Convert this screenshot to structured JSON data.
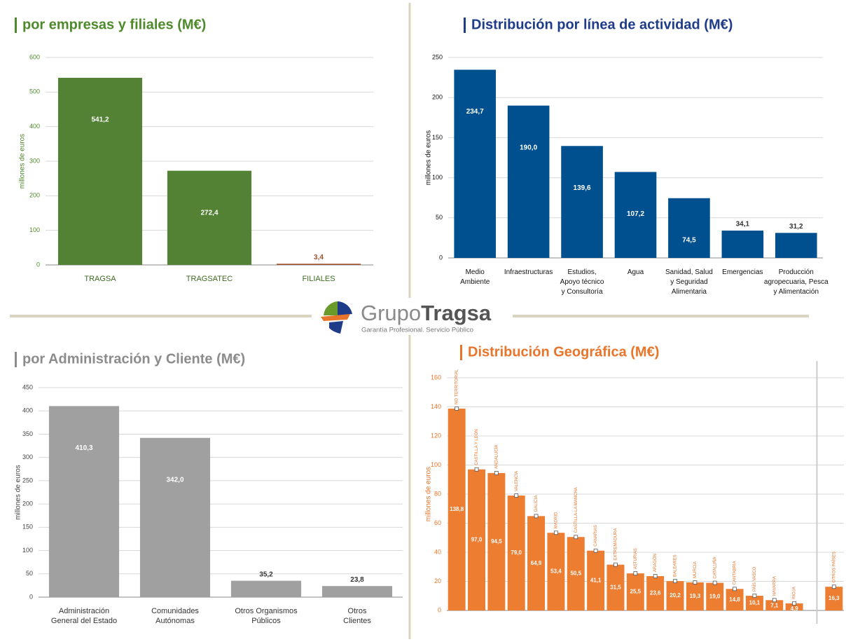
{
  "chart_data": [
    {
      "type": "bar",
      "title": "por empresas y filiales (M€)",
      "ylabel": "millones de euros",
      "categories": [
        "TRAGSA",
        "TRAGSATEC",
        "FILIALES"
      ],
      "values": [
        541.2,
        272.4,
        3.4
      ],
      "value_labels": [
        "541,2",
        "272,4",
        "3,4"
      ],
      "colors": [
        "#548235",
        "#548235",
        "#a0522d"
      ],
      "ylim": [
        0,
        600
      ],
      "yticks": [
        0,
        100,
        200,
        300,
        400,
        500,
        600
      ],
      "grid": true
    },
    {
      "type": "bar",
      "title": "Distribución por línea de actividad (M€)",
      "ylabel": "millones de euros",
      "categories": [
        "Medio\nAmbiente",
        "Infraestructuras",
        "Estudios,\nApoyo técnico\ny Consultoría",
        "Agua",
        "Sanidad, Salud\ny Seguridad\nAlimentaria",
        "Emergencias",
        "Producción\nagropecuaria, Pesca\ny Alimentación"
      ],
      "values": [
        234.7,
        190.0,
        139.6,
        107.2,
        74.5,
        34.1,
        31.2
      ],
      "value_labels": [
        "234,7",
        "190,0",
        "139,6",
        "107,2",
        "74,5",
        "34,1",
        "31,2"
      ],
      "color": "#00508f",
      "ylim": [
        0,
        250
      ],
      "yticks": [
        0,
        50,
        100,
        150,
        200,
        250
      ],
      "grid": true
    },
    {
      "type": "bar",
      "title": "por Administración y Cliente (M€)",
      "ylabel": "millones de euros",
      "categories": [
        "Administración\nGeneral del Estado",
        "Comunidades\nAutónomas",
        "Otros Organismos\nPúblicos",
        "Otros\nClientes"
      ],
      "values": [
        410.3,
        342.0,
        35.2,
        23.8
      ],
      "value_labels": [
        "410,3",
        "342,0",
        "35,2",
        "23,8"
      ],
      "color": "#a0a0a0",
      "ylim": [
        0,
        450
      ],
      "yticks": [
        0,
        50,
        100,
        150,
        200,
        250,
        300,
        350,
        400,
        450
      ],
      "grid": true
    },
    {
      "type": "bar",
      "title": "Distribución Geográfica (M€)",
      "ylabel": "millones de euros",
      "categories": [
        "NO TERRITORIAL",
        "CASTILLA Y LEÓN",
        "ANDALUCÍA",
        "VALENCIA",
        "GALICIA",
        "MADRID",
        "CASTILLA-LA MANCHA",
        "CANARIAS",
        "EXTREMADURA",
        "ASTURIAS",
        "ARAGÓN",
        "BALEARES",
        "MURCIA",
        "CATALUÑA",
        "CANTABRIA",
        "PAÍS VASCO",
        "NAVARRA",
        "RIOJA",
        "OTROS PAÍSES"
      ],
      "values": [
        138.8,
        97.0,
        94.5,
        79.0,
        64.9,
        53.4,
        50.5,
        41.1,
        31.5,
        25.5,
        23.6,
        20.2,
        19.3,
        19.0,
        14.8,
        10.1,
        7.1,
        4.9,
        16.3
      ],
      "value_labels": [
        "138,8",
        "97,0",
        "94,5",
        "79,0",
        "64,9",
        "53,4",
        "50,5",
        "41,1",
        "31,5",
        "25,5",
        "23,6",
        "20,2",
        "19,3",
        "19,0",
        "14,8",
        "10,1",
        "7,1",
        "4,9",
        "16,3"
      ],
      "color": "#ed7d31",
      "ylim": [
        0,
        160
      ],
      "yticks": [
        0,
        20,
        40,
        60,
        80,
        100,
        120,
        140,
        160
      ],
      "grid": true
    }
  ],
  "logo": {
    "name_light": "Grupo",
    "name_bold": "Tragsa",
    "tagline": "Garantía Profesional. Servicio Público"
  }
}
